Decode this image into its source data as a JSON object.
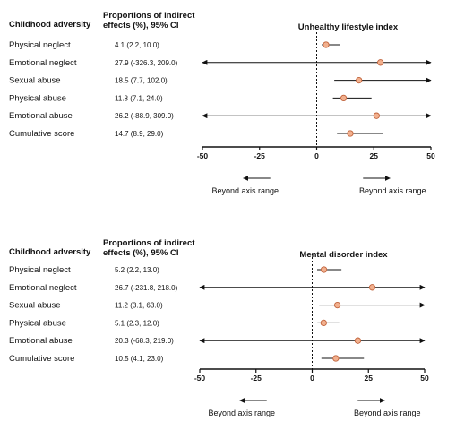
{
  "chart_data": [
    {
      "type": "forest",
      "title": "Unhealthy lifestyle index",
      "column_header_left": "Childhood adversity",
      "column_header_mid": [
        "Proportions of indirect",
        "effects (%), 95% CI"
      ],
      "xlim": [
        -50,
        50
      ],
      "xticks": [
        "-50",
        "-25",
        "0",
        "25",
        "50"
      ],
      "reference_line": 0,
      "rows": [
        {
          "label": "Physical neglect",
          "value_text": "4.1 (2.2, 10.0)",
          "point": 4.1,
          "lo": 2.2,
          "hi": 10.0
        },
        {
          "label": "Emotional neglect",
          "value_text": "27.9 (-326.3, 209.0)",
          "point": 27.9,
          "lo": -326.3,
          "hi": 209.0
        },
        {
          "label": "Sexual abuse",
          "value_text": "18.5 (7.7, 102.0)",
          "point": 18.5,
          "lo": 7.7,
          "hi": 102.0
        },
        {
          "label": "Physical abuse",
          "value_text": "11.8 (7.1, 24.0)",
          "point": 11.8,
          "lo": 7.1,
          "hi": 24.0
        },
        {
          "label": "Emotional abuse",
          "value_text": "26.2 (-88.9, 309.0)",
          "point": 26.2,
          "lo": -88.9,
          "hi": 309.0
        },
        {
          "label": "Cumulative score",
          "value_text": "14.7 (8.9, 29.0)",
          "point": 14.7,
          "lo": 8.9,
          "hi": 29.0
        }
      ],
      "annotation_left": "Beyond axis range",
      "annotation_right": "Beyond axis range"
    },
    {
      "type": "forest",
      "title": "Mental disorder index",
      "column_header_left": "Childhood adversity",
      "column_header_mid": [
        "Proportions of indirect",
        "effects (%), 95% CI"
      ],
      "xlim": [
        -50,
        50
      ],
      "xticks": [
        "-50",
        "-25",
        "0",
        "25",
        "50"
      ],
      "reference_line": 0,
      "rows": [
        {
          "label": "Physical neglect",
          "value_text": "5.2 (2.2, 13.0)",
          "point": 5.2,
          "lo": 2.2,
          "hi": 13.0
        },
        {
          "label": "Emotional neglect",
          "value_text": "26.7 (-231.8, 218.0)",
          "point": 26.7,
          "lo": -231.8,
          "hi": 218.0
        },
        {
          "label": "Sexual abuse",
          "value_text": "11.2 (3.1, 63.0)",
          "point": 11.2,
          "lo": 3.1,
          "hi": 63.0
        },
        {
          "label": "Physical abuse",
          "value_text": "5.1 (2.3, 12.0)",
          "point": 5.1,
          "lo": 2.3,
          "hi": 12.0
        },
        {
          "label": "Emotional abuse",
          "value_text": "20.3 (-68.3, 219.0)",
          "point": 20.3,
          "lo": -68.3,
          "hi": 219.0
        },
        {
          "label": "Cumulative score",
          "value_text": "10.5 (4.1, 23.0)",
          "point": 10.5,
          "lo": 4.1,
          "hi": 23.0
        }
      ],
      "annotation_left": "Beyond axis range",
      "annotation_right": "Beyond axis range"
    }
  ],
  "colors": {
    "marker_fill": "#f2b08e",
    "marker_stroke": "#c0623a",
    "line": "#111111"
  }
}
